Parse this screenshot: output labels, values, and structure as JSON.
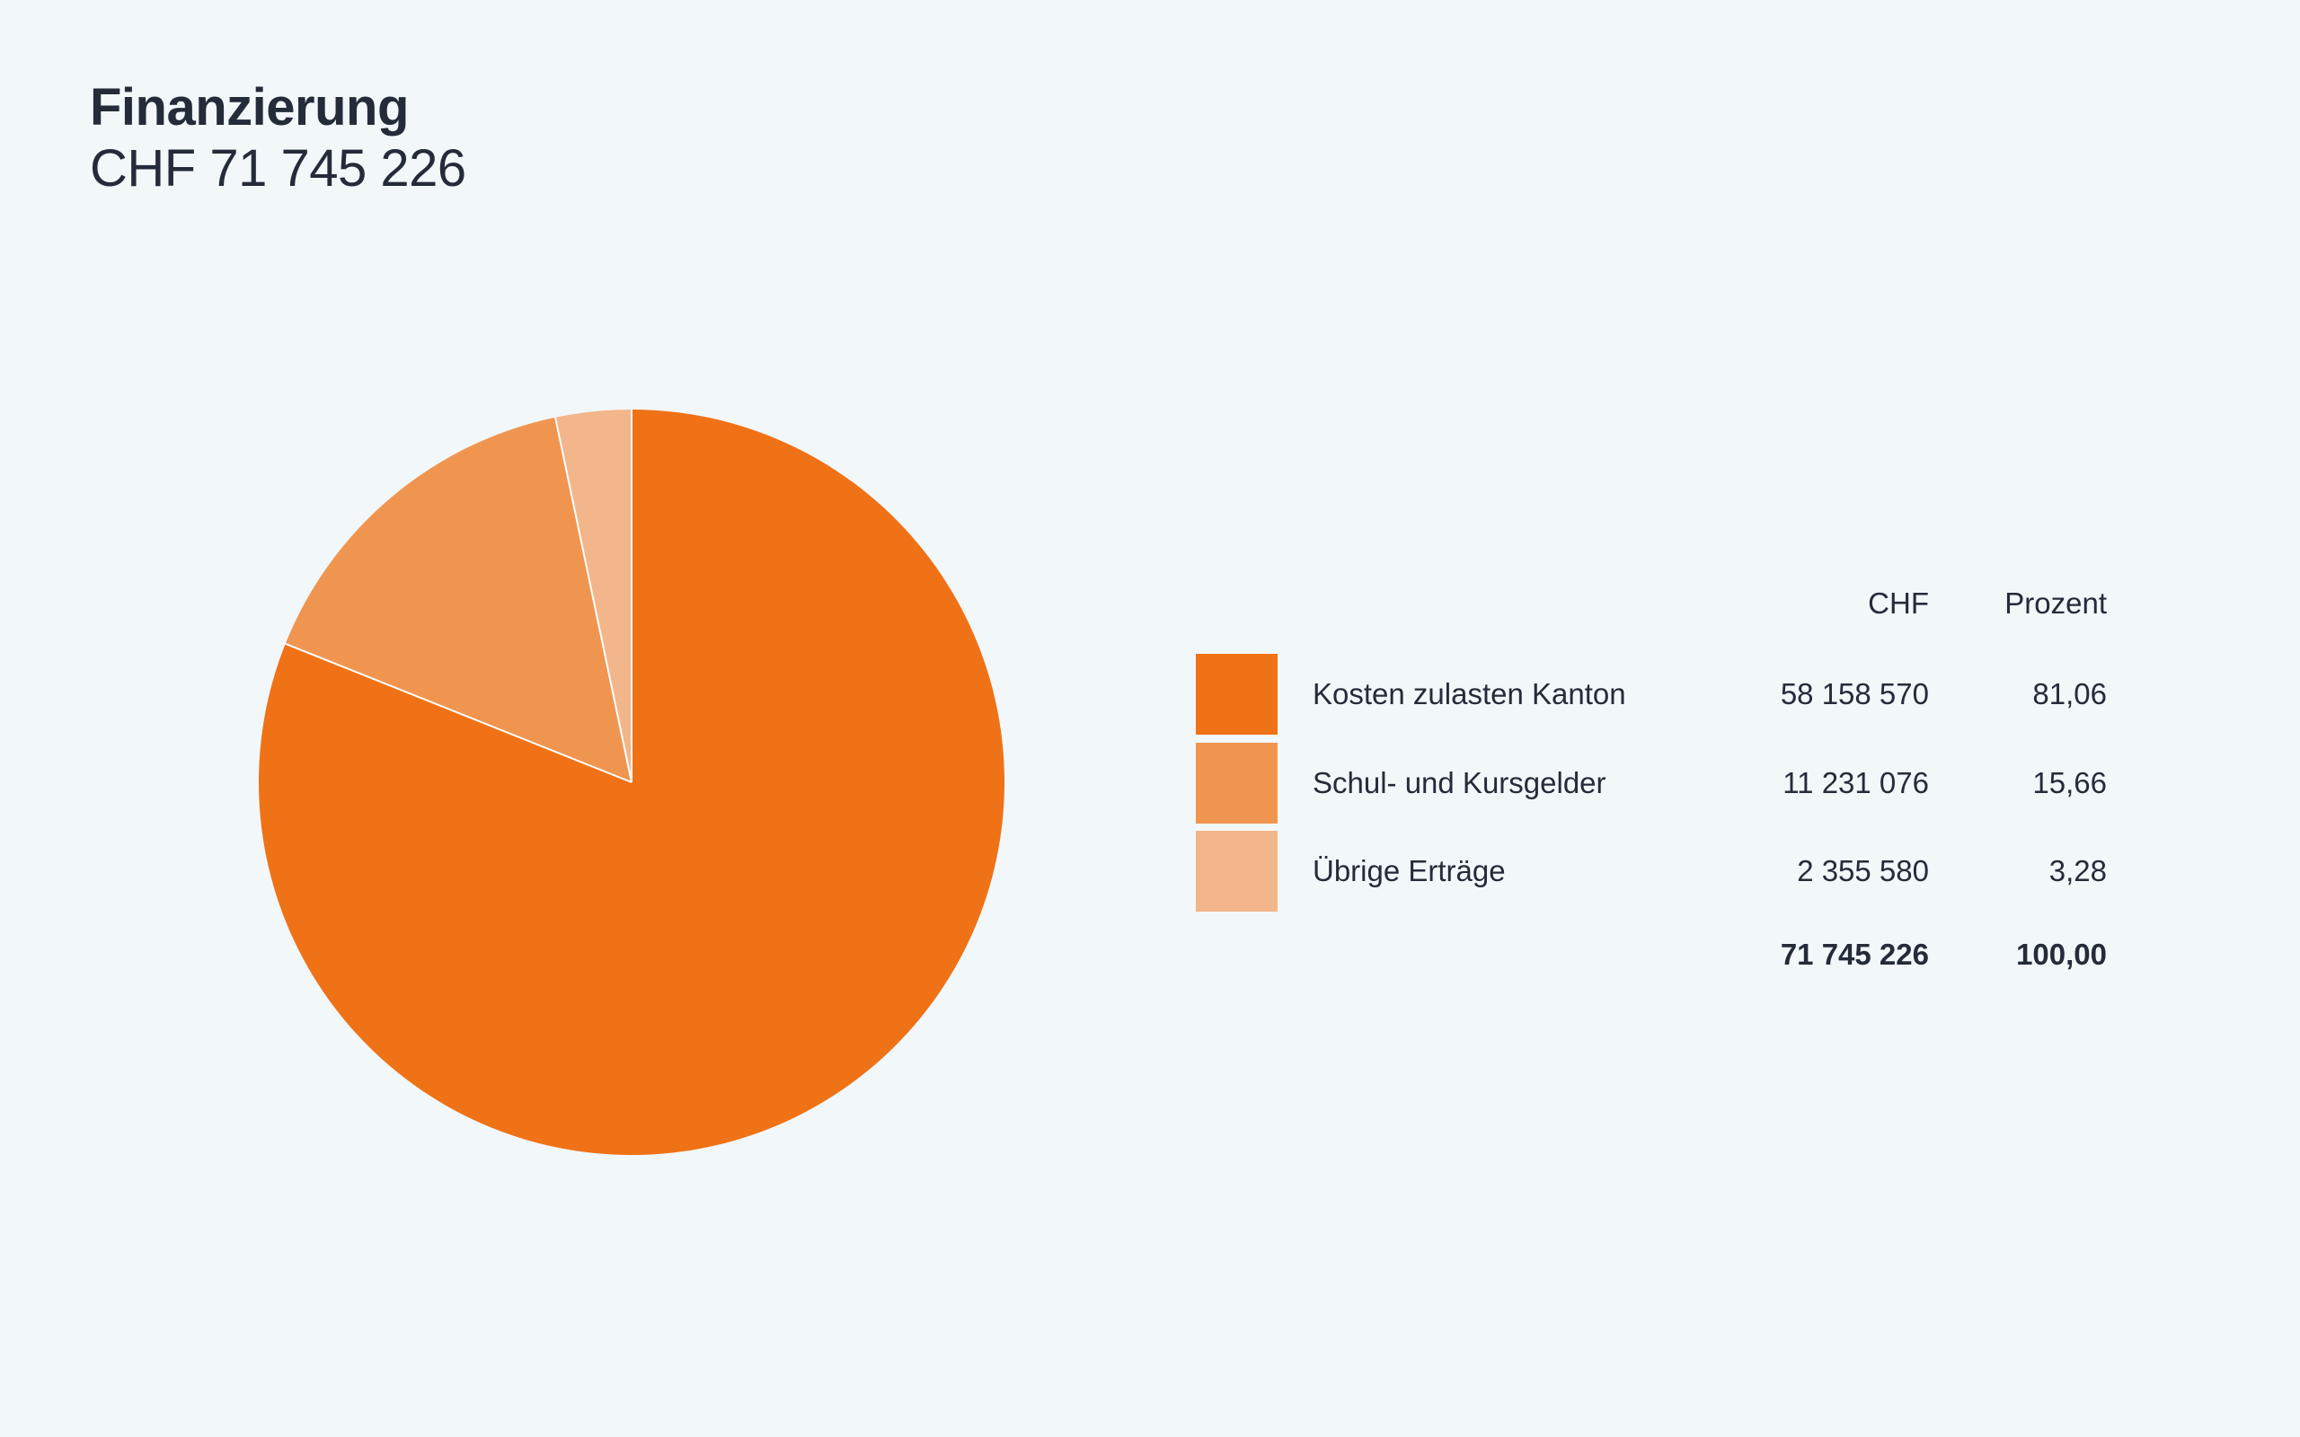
{
  "page": {
    "background": "#F2F7FA",
    "text_color": "#242C39"
  },
  "header": {
    "title": "Finanzierung",
    "subtitle": "CHF 71 745 226"
  },
  "chart_data": {
    "type": "pie",
    "title": "Finanzierung",
    "subtitle": "CHF 71 745 226",
    "unit": "CHF",
    "legend_position": "right",
    "start_angle_deg": 0,
    "direction": "clockwise",
    "separator_color": "#FFFFFF",
    "columns": [
      "CHF",
      "Prozent"
    ],
    "slices": [
      {
        "label": "Kosten zulasten Kanton",
        "chf": "58 158 570",
        "prozent": "81,06",
        "value": 58158570,
        "percent": 81.06,
        "color": "#F07216"
      },
      {
        "label": "Schul- und Kursgelder",
        "chf": "11 231 076",
        "prozent": "15,66",
        "value": 11231076,
        "percent": 15.66,
        "color": "#F09550"
      },
      {
        "label": "Übrige Erträge",
        "chf": "2 355 580",
        "prozent": "3,28",
        "value": 2355580,
        "percent": 3.28,
        "color": "#F3B58A"
      }
    ],
    "total": {
      "chf": "71 745 226",
      "prozent": "100,00",
      "value": 71745226,
      "percent": 100.0
    }
  }
}
